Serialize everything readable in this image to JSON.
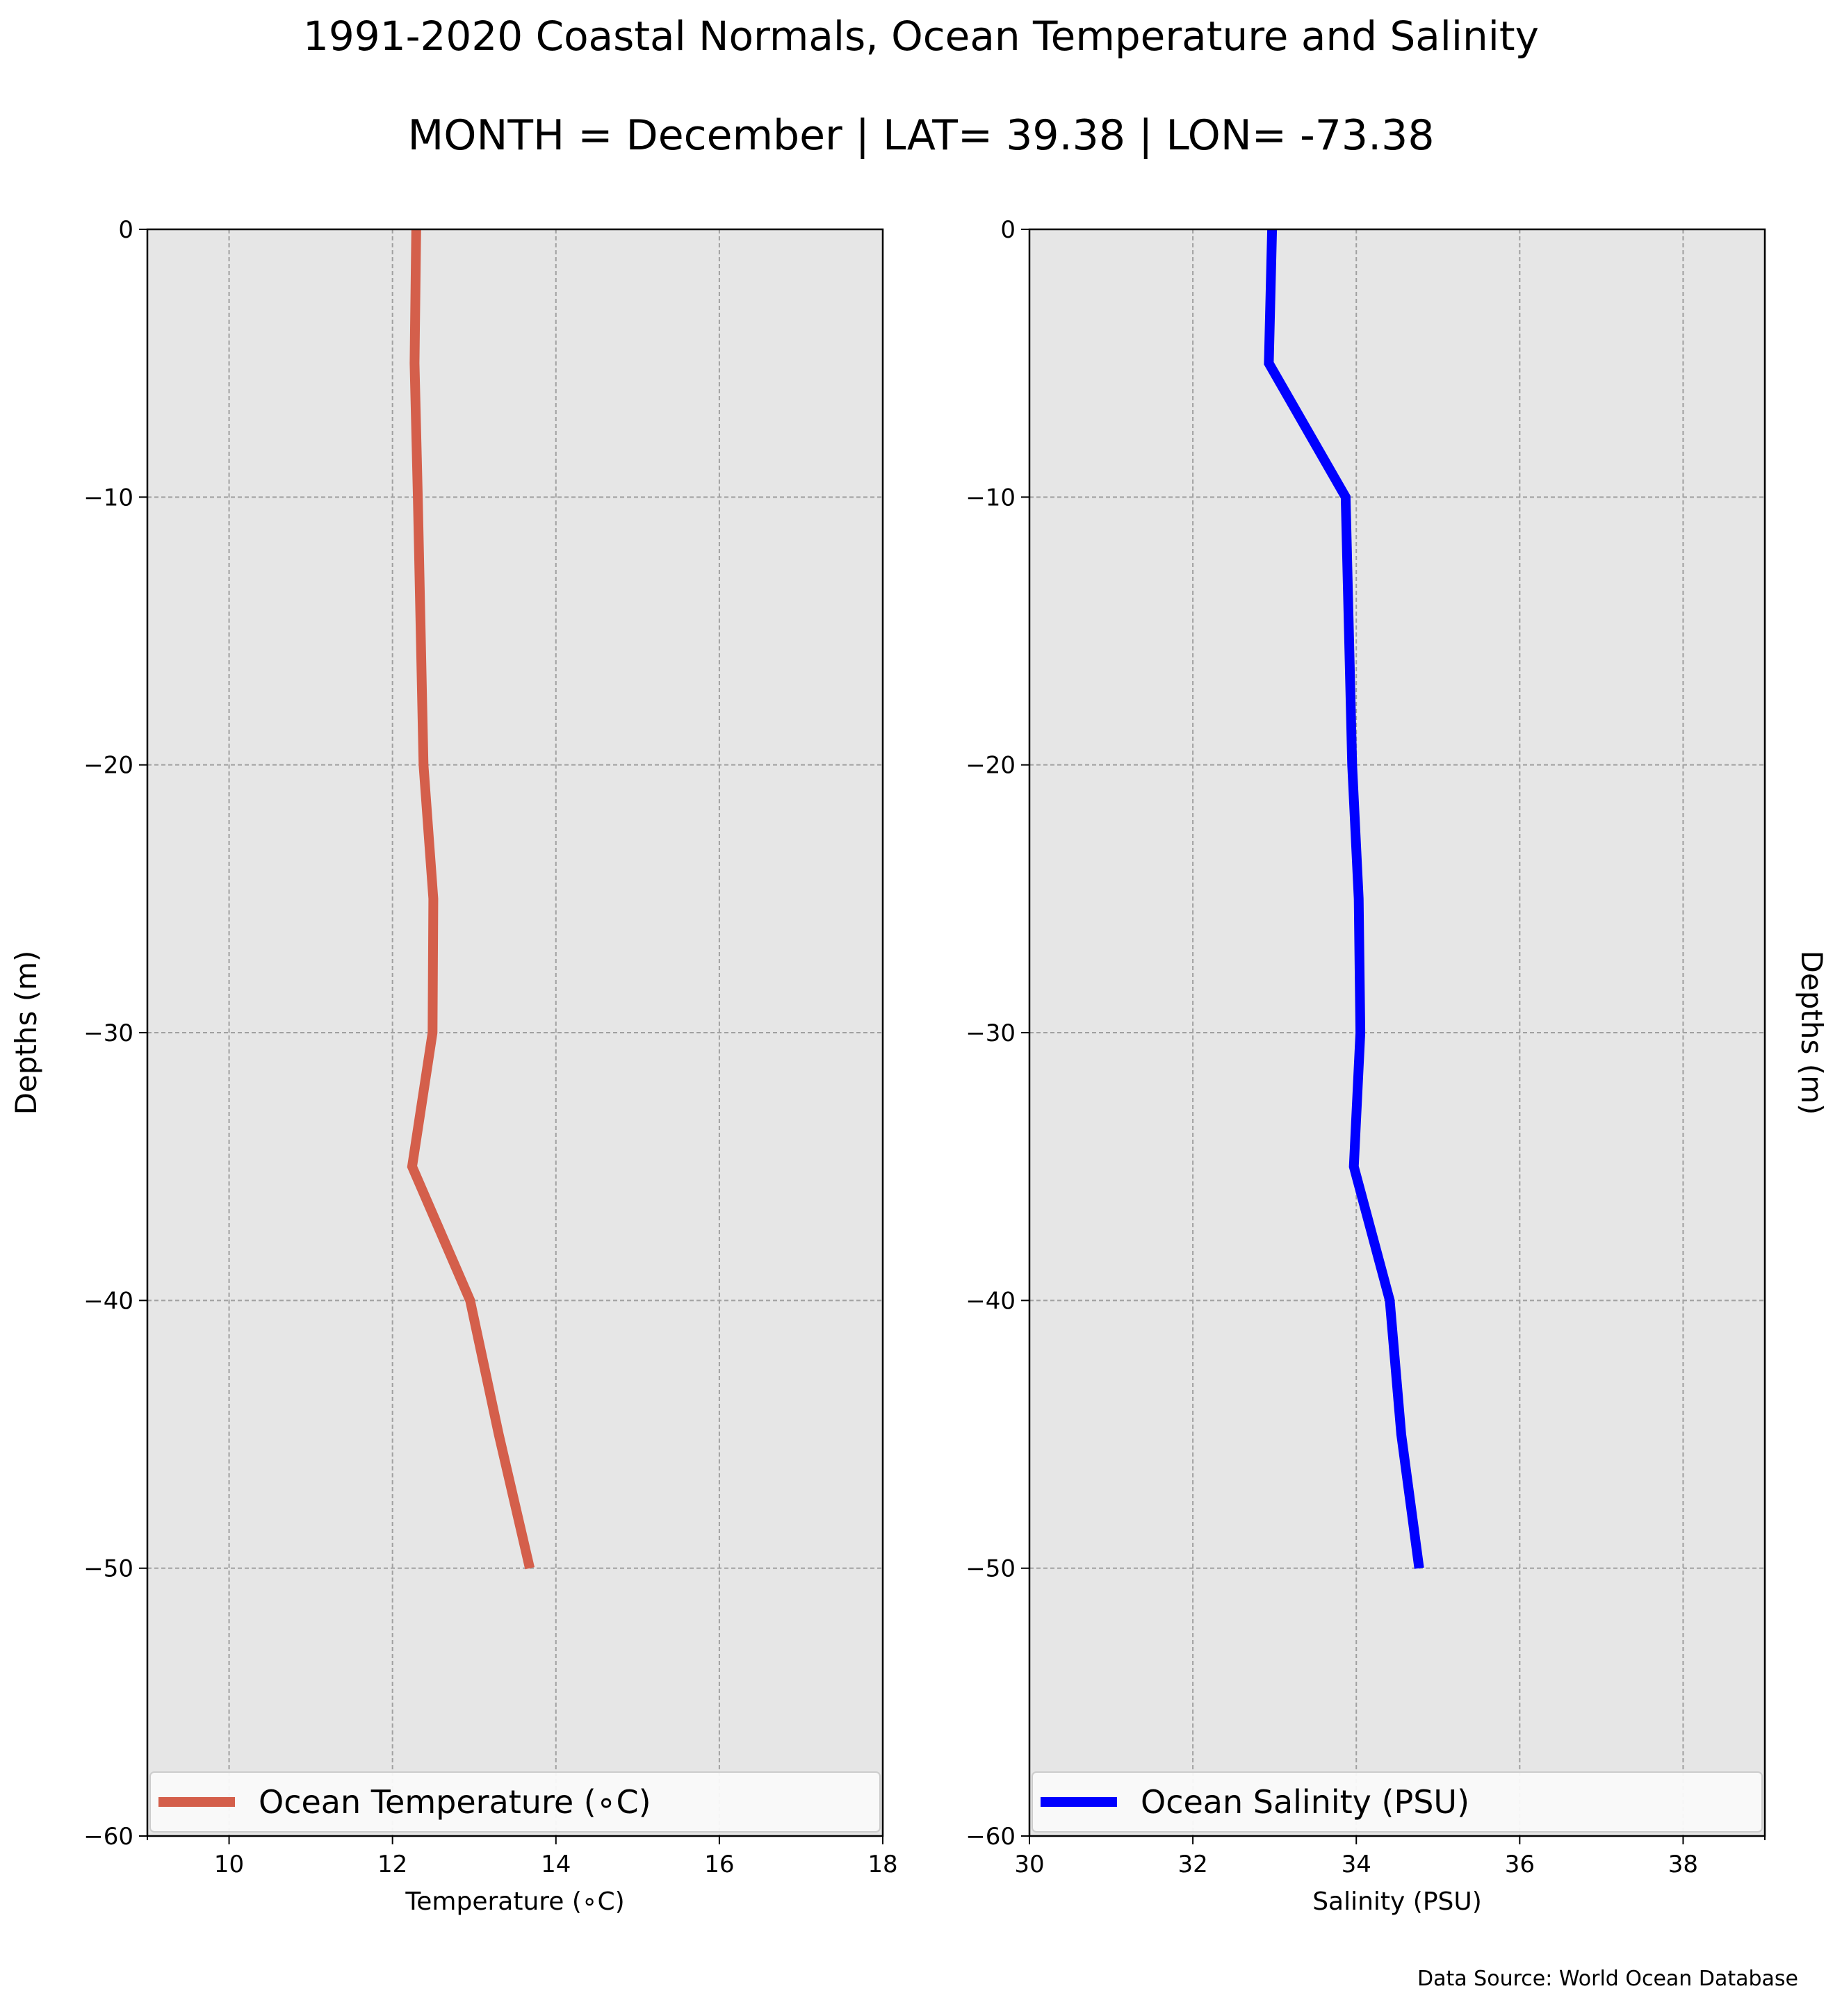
{
  "header": {
    "title": "1991-2020 Coastal Normals, Ocean Temperature and Salinity",
    "subtitle": "MONTH = December | LAT= 39.38 | LON= -73.38"
  },
  "footer": {
    "source": "Data Source: World Ocean Database"
  },
  "colors": {
    "background": "#e6e6e6",
    "grid": "#a0a0a0",
    "temperature": "#d45f4b",
    "salinity": "#0000ff"
  },
  "chart_data": [
    {
      "type": "line",
      "xlabel": "Temperature ($^\\circ$C)",
      "xlabel_display": "Temperature (∘C)",
      "ylabel": "Depths (m)",
      "ylabel_side": "left",
      "xlim": [
        9,
        18
      ],
      "ylim": [
        -60,
        0
      ],
      "xticks": [
        10,
        12,
        14,
        16,
        18
      ],
      "yticks": [
        0,
        -10,
        -20,
        -30,
        -40,
        -50,
        -60
      ],
      "grid": true,
      "legend_position": "bottom",
      "series": [
        {
          "name": "Ocean Temperature (∘C)",
          "color": "#d45f4b",
          "x": [
            12.29,
            12.27,
            12.31,
            12.38,
            12.5,
            12.49,
            12.24,
            12.95,
            13.3,
            13.68
          ],
          "y": [
            0,
            -5,
            -10,
            -20,
            -25,
            -30,
            -35,
            -40,
            -45,
            -50
          ]
        }
      ]
    },
    {
      "type": "line",
      "xlabel": "Salinity (PSU)",
      "ylabel": "Depths (m)",
      "ylabel_side": "right",
      "xlim": [
        30,
        39
      ],
      "ylim": [
        -60,
        0
      ],
      "xticks": [
        30,
        32,
        34,
        36,
        38
      ],
      "yticks": [
        0,
        -10,
        -20,
        -30,
        -40,
        -50,
        -60
      ],
      "grid": true,
      "legend_position": "bottom",
      "series": [
        {
          "name": "Ocean Salinity (PSU)",
          "color": "#0000ff",
          "x": [
            32.97,
            32.93,
            33.87,
            33.95,
            34.03,
            34.05,
            33.97,
            34.41,
            34.55,
            34.77
          ],
          "y": [
            0,
            -5,
            -10,
            -20,
            -25,
            -30,
            -35,
            -40,
            -45,
            -50
          ]
        }
      ]
    }
  ]
}
